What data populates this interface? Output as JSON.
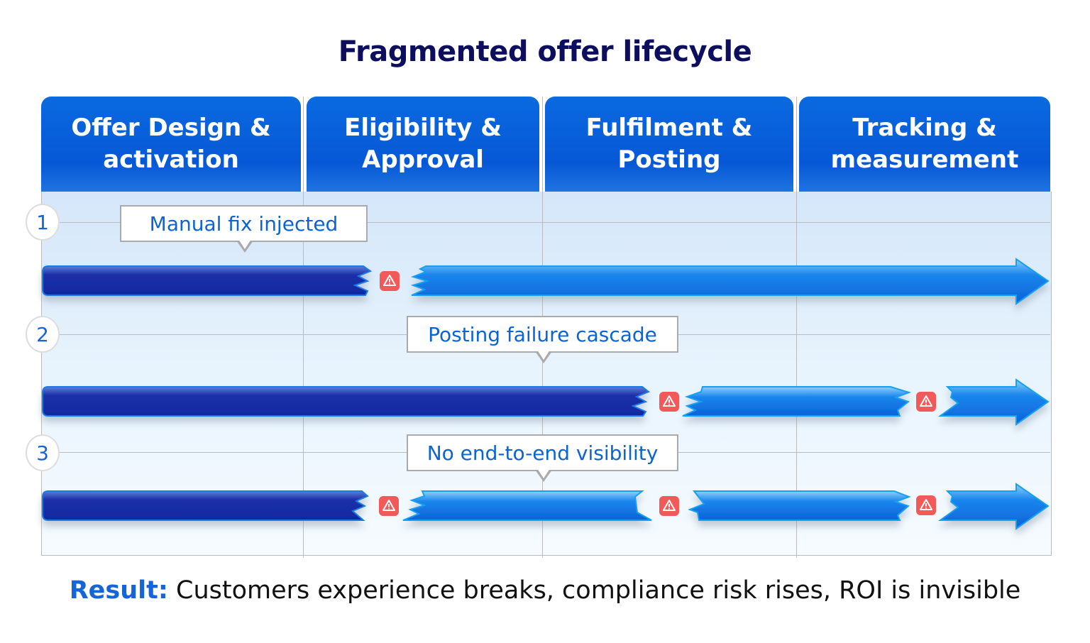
{
  "title": "Fragmented offer lifecycle",
  "columns": [
    {
      "line1": "Offer Design &",
      "line2": "activation"
    },
    {
      "line1": "Eligibility &",
      "line2": "Approval"
    },
    {
      "line1": "Fulfilment &",
      "line2": "Posting"
    },
    {
      "line1": "Tracking &",
      "line2": "measurement"
    }
  ],
  "rows": [
    {
      "number": "1",
      "callout": "Manual fix injected",
      "breaks": 1
    },
    {
      "number": "2",
      "callout": "Posting failure cascade",
      "breaks": 2
    },
    {
      "number": "3",
      "callout": "No end-to-end visibility",
      "breaks": 3
    }
  ],
  "result": {
    "label": "Result:",
    "text": " Customers experience breaks, compliance risk rises, ROI is invisible"
  },
  "colors": {
    "header": "#0758d6",
    "title": "#0d0f5e",
    "accent": "#1565d8",
    "warning": "#f25a5a"
  },
  "icons": {
    "warning": "warning-triangle-icon"
  }
}
